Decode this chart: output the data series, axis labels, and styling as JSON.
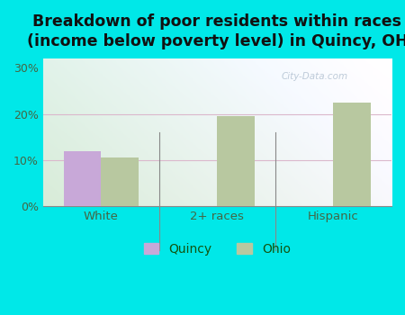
{
  "categories": [
    "White",
    "2+ races",
    "Hispanic"
  ],
  "quincy_values": [
    12.0,
    0,
    0
  ],
  "ohio_values": [
    10.5,
    19.5,
    22.5
  ],
  "quincy_color": "#c8a8d8",
  "ohio_color": "#b8c8a0",
  "title": "Breakdown of poor residents within races\n(income below poverty level) in Quincy, OH",
  "title_fontsize": 12.5,
  "yticks": [
    0,
    10,
    20,
    30
  ],
  "ytick_labels": [
    "0%",
    "10%",
    "20%",
    "30%"
  ],
  "ylim": [
    0,
    32
  ],
  "bar_width": 0.32,
  "background_color": "#00e8e8",
  "legend_quincy": "Quincy",
  "legend_ohio": "Ohio",
  "watermark": "City-Data.com",
  "grid_color": "#e8c8d8",
  "gradient_top": "#f0f8f0",
  "gradient_bottom": "#d8ecd8",
  "gradient_right": "#f4f4f8"
}
